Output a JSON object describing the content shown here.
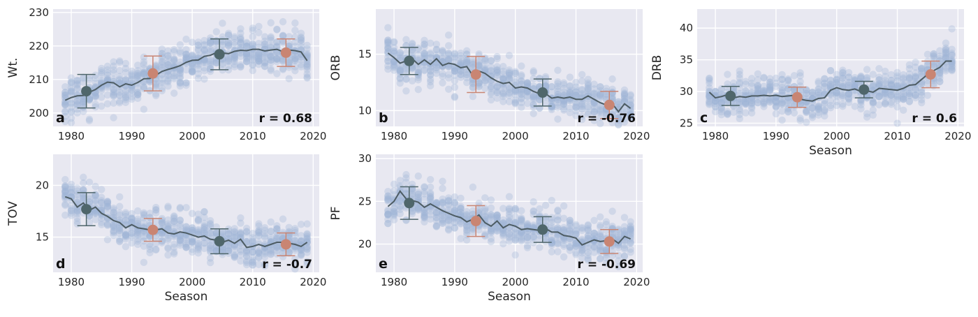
{
  "colors": {
    "background": "#e8e8f1",
    "grid": "#ffffff",
    "scatter": "#9fb3d6",
    "trend": "#4d5c63",
    "marker_dark": "#4f666b",
    "marker_highlight": "#c98573"
  },
  "chart_data": [
    {
      "panel": "a",
      "type": "scatter",
      "ylabel": "Wt.",
      "xlabel": "",
      "xlim": [
        1977,
        2021
      ],
      "ylim": [
        196,
        231
      ],
      "xticks": [
        1980,
        1990,
        2000,
        2010,
        2020
      ],
      "yticks": [
        200,
        210,
        220,
        230
      ],
      "correlation": "r = 0.68",
      "trend": {
        "x": [
          1979,
          1980,
          1981,
          1982,
          1983,
          1984,
          1985,
          1986,
          1987,
          1988,
          1989,
          1990,
          1991,
          1992,
          1993,
          1994,
          1995,
          1996,
          1997,
          1998,
          1999,
          2000,
          2001,
          2002,
          2003,
          2004,
          2005,
          2006,
          2007,
          2008,
          2009,
          2010,
          2011,
          2012,
          2013,
          2014,
          2015,
          2016,
          2017,
          2018,
          2019
        ],
        "y": [
          203.8,
          204.6,
          205.1,
          205.2,
          206.2,
          207.0,
          208.3,
          209.2,
          209.0,
          207.8,
          208.7,
          208.3,
          209.1,
          210.2,
          210.3,
          211.3,
          212.4,
          213.0,
          213.5,
          214.1,
          215.1,
          215.7,
          215.8,
          216.9,
          217.2,
          218.0,
          217.9,
          217.7,
          218.4,
          218.7,
          218.6,
          219.0,
          219.0,
          218.5,
          218.8,
          219.0,
          218.3,
          218.8,
          218.6,
          218.2,
          215.6
        ]
      },
      "decade_means": [
        {
          "season": 1982.5,
          "mean": 206.5,
          "low": 201.5,
          "high": 211.5,
          "color": "dark"
        },
        {
          "season": 1993.5,
          "mean": 211.8,
          "low": 206.6,
          "high": 217.0,
          "color": "highlight"
        },
        {
          "season": 2004.5,
          "mean": 217.5,
          "low": 212.9,
          "high": 222.1,
          "color": "dark"
        },
        {
          "season": 2015.5,
          "mean": 218.0,
          "low": 213.9,
          "high": 222.1,
          "color": "highlight"
        }
      ]
    },
    {
      "panel": "b",
      "type": "scatter",
      "ylabel": "ORB",
      "xlabel": "",
      "xlim": [
        1977,
        2021
      ],
      "ylim": [
        8.6,
        19
      ],
      "xticks": [
        1980,
        1990,
        2000,
        2010,
        2020
      ],
      "yticks": [
        10,
        15
      ],
      "correlation": "r = -0.76",
      "trend": {
        "x": [
          1979,
          1980,
          1981,
          1982,
          1983,
          1984,
          1985,
          1986,
          1987,
          1988,
          1989,
          1990,
          1991,
          1992,
          1993,
          1994,
          1995,
          1996,
          1997,
          1998,
          1999,
          2000,
          2001,
          2002,
          2003,
          2004,
          2005,
          2006,
          2007,
          2008,
          2009,
          2010,
          2011,
          2012,
          2013,
          2014,
          2015,
          2016,
          2017,
          2018,
          2019
        ],
        "y": [
          15.1,
          14.7,
          14.2,
          14.4,
          14.6,
          14.1,
          14.5,
          14.1,
          14.6,
          14.0,
          14.2,
          14.1,
          13.8,
          13.9,
          13.1,
          13.5,
          13.3,
          12.9,
          12.6,
          12.4,
          12.5,
          12.0,
          12.1,
          12.0,
          11.7,
          11.5,
          11.5,
          11.1,
          11.2,
          11.1,
          11.2,
          11.0,
          11.0,
          11.3,
          11.0,
          10.7,
          10.5,
          10.6,
          9.9,
          10.6,
          10.2
        ]
      },
      "decade_means": [
        {
          "season": 1982.5,
          "mean": 14.4,
          "low": 13.2,
          "high": 15.6,
          "color": "dark"
        },
        {
          "season": 1993.5,
          "mean": 13.2,
          "low": 11.6,
          "high": 14.8,
          "color": "highlight"
        },
        {
          "season": 2004.5,
          "mean": 11.6,
          "low": 10.4,
          "high": 12.8,
          "color": "dark"
        },
        {
          "season": 2015.5,
          "mean": 10.5,
          "low": 9.3,
          "high": 11.7,
          "color": "highlight"
        }
      ]
    },
    {
      "panel": "c",
      "type": "scatter",
      "ylabel": "DRB",
      "xlabel": "Season",
      "xlim": [
        1977,
        2021
      ],
      "ylim": [
        24.5,
        43
      ],
      "xticks": [
        1980,
        1990,
        2000,
        2010,
        2020
      ],
      "yticks": [
        25,
        30,
        35,
        40
      ],
      "correlation": "r = 0.6",
      "trend": {
        "x": [
          1979,
          1980,
          1981,
          1982,
          1983,
          1984,
          1985,
          1986,
          1987,
          1988,
          1989,
          1990,
          1991,
          1992,
          1993,
          1994,
          1995,
          1996,
          1997,
          1998,
          1999,
          2000,
          2001,
          2002,
          2003,
          2004,
          2005,
          2006,
          2007,
          2008,
          2009,
          2010,
          2011,
          2012,
          2013,
          2014,
          2015,
          2016,
          2017,
          2018,
          2019
        ],
        "y": [
          29.9,
          29.0,
          29.2,
          29.5,
          29.0,
          29.2,
          29.1,
          29.3,
          29.3,
          29.4,
          29.3,
          29.4,
          29.2,
          29.3,
          29.4,
          28.8,
          28.6,
          28.5,
          28.9,
          29.0,
          30.2,
          30.6,
          30.3,
          30.2,
          30.4,
          30.0,
          30.1,
          29.9,
          30.5,
          30.4,
          30.3,
          30.2,
          30.5,
          31.0,
          31.1,
          31.9,
          32.7,
          33.3,
          33.8,
          34.8,
          34.8
        ]
      },
      "decade_means": [
        {
          "season": 1982.5,
          "mean": 29.3,
          "low": 27.8,
          "high": 30.8,
          "color": "dark"
        },
        {
          "season": 1993.5,
          "mean": 29.1,
          "low": 27.5,
          "high": 30.7,
          "color": "highlight"
        },
        {
          "season": 2004.5,
          "mean": 30.3,
          "low": 29.0,
          "high": 31.6,
          "color": "dark"
        },
        {
          "season": 2015.5,
          "mean": 32.7,
          "low": 30.6,
          "high": 34.8,
          "color": "highlight"
        }
      ]
    },
    {
      "panel": "d",
      "type": "scatter",
      "ylabel": "TOV",
      "xlabel": "Season",
      "xlim": [
        1977,
        2021
      ],
      "ylim": [
        11.6,
        23
      ],
      "xticks": [
        1980,
        1990,
        2000,
        2010,
        2020
      ],
      "yticks": [
        15,
        20
      ],
      "correlation": "r = -0.7",
      "trend": {
        "x": [
          1979,
          1980,
          1981,
          1982,
          1983,
          1984,
          1985,
          1986,
          1987,
          1988,
          1989,
          1990,
          1991,
          1992,
          1993,
          1994,
          1995,
          1996,
          1997,
          1998,
          1999,
          2000,
          2001,
          2002,
          2003,
          2004,
          2005,
          2006,
          2007,
          2008,
          2009,
          2010,
          2011,
          2012,
          2013,
          2014,
          2015,
          2016,
          2017,
          2018,
          2019
        ],
        "y": [
          18.9,
          18.7,
          17.9,
          18.3,
          17.6,
          17.9,
          17.3,
          17.0,
          16.6,
          16.4,
          15.9,
          16.2,
          15.9,
          15.8,
          15.7,
          15.7,
          15.8,
          15.4,
          15.3,
          15.5,
          15.4,
          15.2,
          15.0,
          15.1,
          14.8,
          14.7,
          14.5,
          14.7,
          14.4,
          14.8,
          14.0,
          14.1,
          14.3,
          14.1,
          14.3,
          14.5,
          14.5,
          14.4,
          14.3,
          14.1,
          14.5
        ]
      },
      "decade_means": [
        {
          "season": 1982.5,
          "mean": 17.7,
          "low": 16.1,
          "high": 19.3,
          "color": "dark"
        },
        {
          "season": 1993.5,
          "mean": 15.7,
          "low": 14.6,
          "high": 16.8,
          "color": "highlight"
        },
        {
          "season": 2004.5,
          "mean": 14.6,
          "low": 13.4,
          "high": 15.8,
          "color": "dark"
        },
        {
          "season": 2015.5,
          "mean": 14.3,
          "low": 13.2,
          "high": 15.4,
          "color": "highlight"
        }
      ]
    },
    {
      "panel": "e",
      "type": "scatter",
      "ylabel": "PF",
      "xlabel": "Season",
      "xlim": [
        1977,
        2021
      ],
      "ylim": [
        16.7,
        30.5
      ],
      "xticks": [
        1980,
        1990,
        2000,
        2010,
        2020
      ],
      "yticks": [
        20,
        25,
        30
      ],
      "correlation": "r = -0.69",
      "trend": {
        "x": [
          1979,
          1980,
          1981,
          1982,
          1983,
          1984,
          1985,
          1986,
          1987,
          1988,
          1989,
          1990,
          1991,
          1992,
          1993,
          1994,
          1995,
          1996,
          1997,
          1998,
          1999,
          2000,
          2001,
          2002,
          2003,
          2004,
          2005,
          2006,
          2007,
          2008,
          2009,
          2010,
          2011,
          2012,
          2013,
          2014,
          2015,
          2016,
          2017,
          2018,
          2019
        ],
        "y": [
          24.4,
          25.0,
          26.2,
          25.3,
          25.1,
          24.9,
          24.3,
          24.7,
          24.3,
          23.9,
          23.6,
          23.3,
          23.1,
          22.6,
          22.9,
          23.4,
          22.5,
          22.1,
          22.7,
          21.9,
          22.3,
          22.1,
          21.7,
          21.8,
          21.7,
          21.6,
          21.8,
          21.4,
          21.4,
          21.0,
          20.9,
          20.7,
          19.9,
          20.2,
          20.5,
          20.3,
          20.4,
          20.6,
          20.1,
          20.9,
          20.6
        ]
      },
      "decade_means": [
        {
          "season": 1982.5,
          "mean": 24.8,
          "low": 22.9,
          "high": 26.7,
          "color": "dark"
        },
        {
          "season": 1993.5,
          "mean": 22.7,
          "low": 20.9,
          "high": 24.5,
          "color": "highlight"
        },
        {
          "season": 2004.5,
          "mean": 21.7,
          "low": 20.2,
          "high": 23.2,
          "color": "dark"
        },
        {
          "season": 2015.5,
          "mean": 20.3,
          "low": 18.9,
          "high": 21.7,
          "color": "highlight"
        }
      ]
    }
  ]
}
